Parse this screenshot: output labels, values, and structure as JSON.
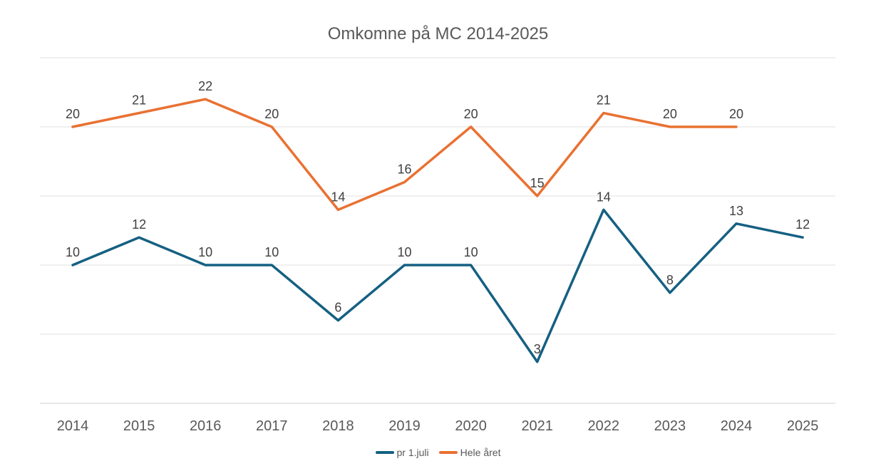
{
  "chart_data": {
    "type": "line",
    "title": "Omkomne på MC 2014-2025",
    "categories": [
      "2014",
      "2015",
      "2016",
      "2017",
      "2018",
      "2019",
      "2020",
      "2021",
      "2022",
      "2023",
      "2024",
      "2025"
    ],
    "series": [
      {
        "name": "pr 1.juli",
        "color": "#156082",
        "values": [
          10,
          12,
          10,
          10,
          6,
          10,
          10,
          3,
          14,
          8,
          13,
          12
        ]
      },
      {
        "name": "Hele året",
        "color": "#e97132",
        "values": [
          20,
          21,
          22,
          20,
          14,
          16,
          20,
          15,
          21,
          20,
          20,
          null
        ]
      }
    ],
    "ylim": [
      0,
      25
    ],
    "ygrid_step": 5,
    "grid": true,
    "data_labels": true,
    "legend": "bottom"
  }
}
